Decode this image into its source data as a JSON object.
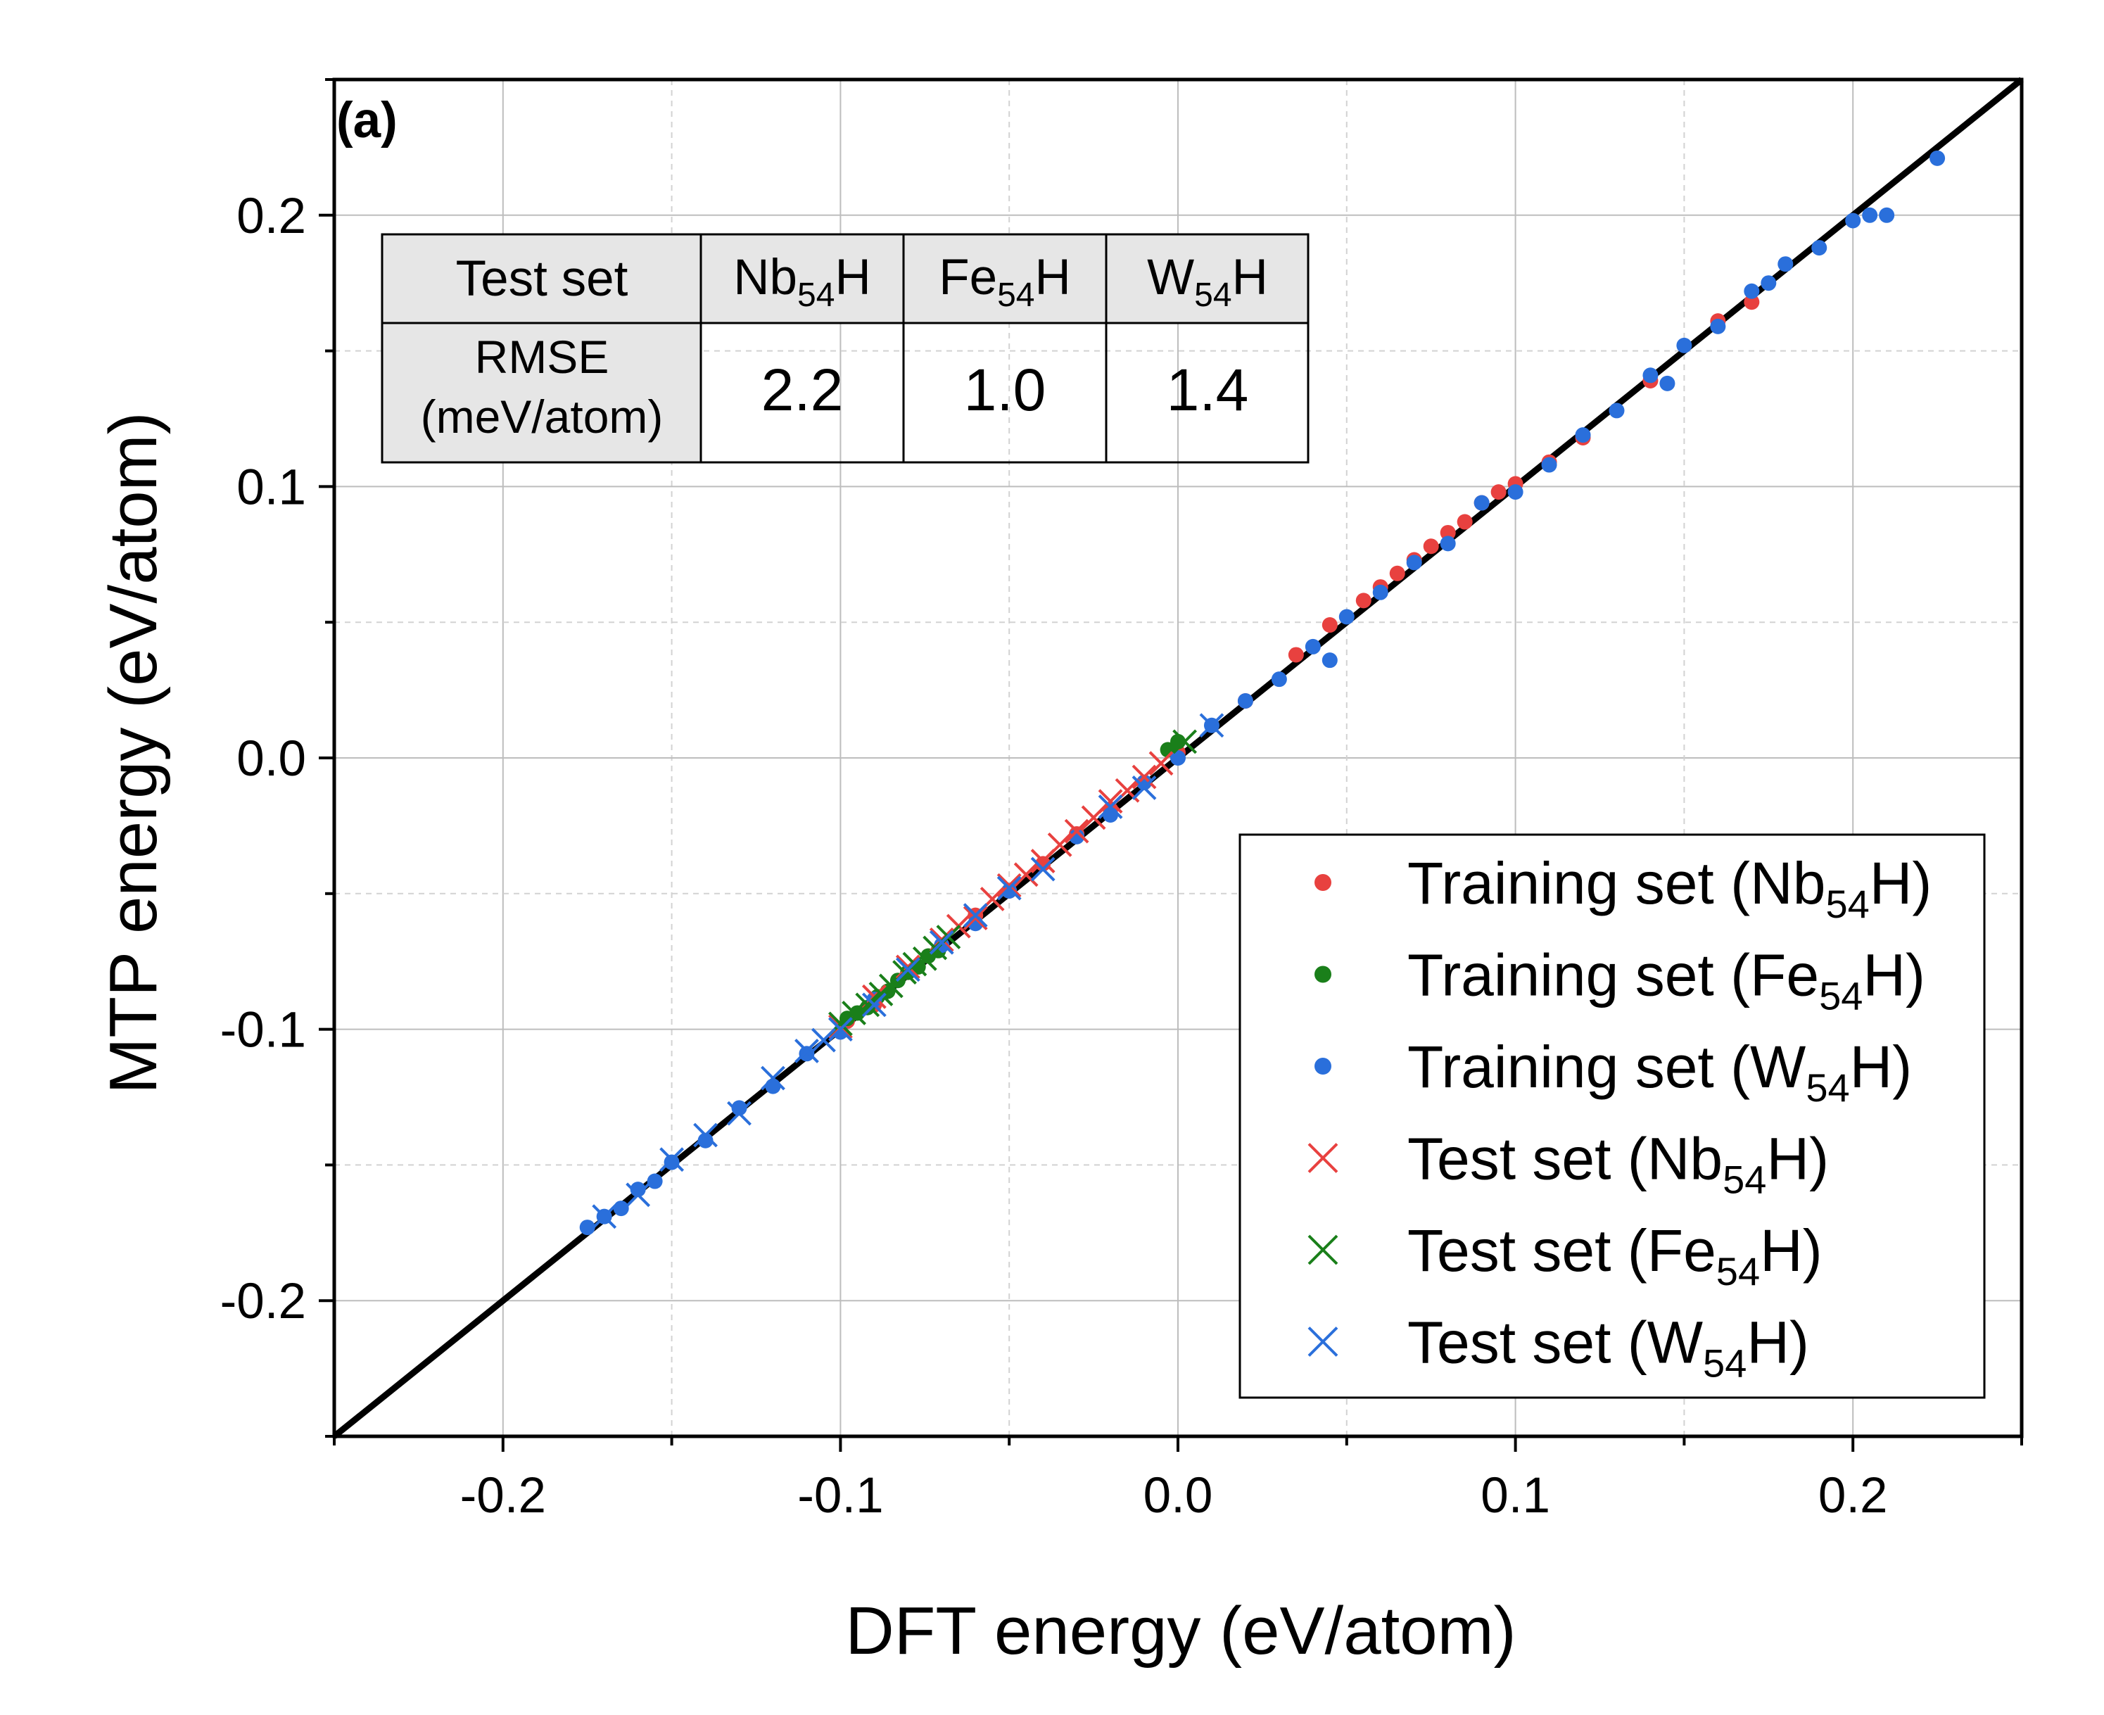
{
  "panel_label": "(a)",
  "chart_data": {
    "type": "scatter",
    "xlabel": "DFT energy (eV/atom)",
    "ylabel": "MTP energy (eV/atom)",
    "xlim": [
      -0.25,
      0.25
    ],
    "ylim": [
      -0.25,
      0.25
    ],
    "x_ticks": [
      -0.2,
      -0.1,
      0.0,
      0.1,
      0.2
    ],
    "y_ticks": [
      -0.2,
      -0.1,
      0.0,
      0.1,
      0.2
    ],
    "x_tick_labels": [
      "-0.2",
      "-0.1",
      "0.0",
      "0.1",
      "0.2"
    ],
    "y_tick_labels": [
      "-0.2",
      "-0.1",
      "0.0",
      "0.1",
      "0.2"
    ],
    "grid": true,
    "reference_line": {
      "x": [
        -0.25,
        0.25
      ],
      "y": [
        -0.25,
        0.25
      ],
      "color": "#000000"
    },
    "legend_position": "bottom-right",
    "series": [
      {
        "name": "Training set (Nb54H)",
        "name_main": "Training set (Nb",
        "name_sub": "54",
        "name_end": "H)",
        "marker": "dot",
        "color": "#e8413f",
        "points": [
          [
            -0.098,
            -0.097
          ],
          [
            -0.09,
            -0.091
          ],
          [
            -0.08,
            -0.079
          ],
          [
            -0.07,
            -0.069
          ],
          [
            -0.06,
            -0.058
          ],
          [
            -0.05,
            -0.049
          ],
          [
            -0.04,
            -0.039
          ],
          [
            -0.03,
            -0.028
          ],
          [
            -0.02,
            -0.019
          ],
          [
            -0.01,
            -0.009
          ],
          [
            0.0,
            0.002
          ],
          [
            0.02,
            0.021
          ],
          [
            0.035,
            0.038
          ],
          [
            0.045,
            0.049
          ],
          [
            0.055,
            0.058
          ],
          [
            0.06,
            0.063
          ],
          [
            0.065,
            0.068
          ],
          [
            0.07,
            0.073
          ],
          [
            0.075,
            0.078
          ],
          [
            0.08,
            0.083
          ],
          [
            0.085,
            0.087
          ],
          [
            0.09,
            0.094
          ],
          [
            0.095,
            0.098
          ],
          [
            0.1,
            0.101
          ],
          [
            0.11,
            0.109
          ],
          [
            0.12,
            0.118
          ],
          [
            0.14,
            0.139
          ],
          [
            0.16,
            0.161
          ],
          [
            0.17,
            0.168
          ]
        ]
      },
      {
        "name": "Training set (Fe54H)",
        "name_main": "Training set (Fe",
        "name_sub": "54",
        "name_end": "H)",
        "marker": "dot",
        "color": "#1a7f1a",
        "points": [
          [
            -0.098,
            -0.096
          ],
          [
            -0.095,
            -0.094
          ],
          [
            -0.092,
            -0.092
          ],
          [
            -0.089,
            -0.088
          ],
          [
            -0.086,
            -0.086
          ],
          [
            -0.083,
            -0.082
          ],
          [
            -0.08,
            -0.079
          ],
          [
            -0.077,
            -0.077
          ],
          [
            -0.074,
            -0.073
          ],
          [
            -0.071,
            -0.071
          ],
          [
            -0.003,
            0.003
          ],
          [
            0.0,
            0.006
          ]
        ]
      },
      {
        "name": "Training set (W54H)",
        "name_main": "Training set (W",
        "name_sub": "54",
        "name_end": "H)",
        "marker": "dot",
        "color": "#2a6fdb",
        "points": [
          [
            -0.175,
            -0.173
          ],
          [
            -0.17,
            -0.169
          ],
          [
            -0.165,
            -0.166
          ],
          [
            -0.16,
            -0.159
          ],
          [
            -0.155,
            -0.156
          ],
          [
            -0.15,
            -0.149
          ],
          [
            -0.14,
            -0.141
          ],
          [
            -0.13,
            -0.129
          ],
          [
            -0.12,
            -0.121
          ],
          [
            -0.11,
            -0.109
          ],
          [
            -0.1,
            -0.101
          ],
          [
            -0.09,
            -0.089
          ],
          [
            -0.07,
            -0.069
          ],
          [
            -0.06,
            -0.061
          ],
          [
            -0.05,
            -0.049
          ],
          [
            -0.03,
            -0.029
          ],
          [
            -0.02,
            -0.021
          ],
          [
            -0.01,
            -0.009
          ],
          [
            0.0,
            0.0
          ],
          [
            0.01,
            0.012
          ],
          [
            0.02,
            0.021
          ],
          [
            0.03,
            0.029
          ],
          [
            0.04,
            0.041
          ],
          [
            0.045,
            0.036
          ],
          [
            0.05,
            0.052
          ],
          [
            0.06,
            0.061
          ],
          [
            0.07,
            0.072
          ],
          [
            0.08,
            0.079
          ],
          [
            0.09,
            0.094
          ],
          [
            0.1,
            0.098
          ],
          [
            0.11,
            0.108
          ],
          [
            0.12,
            0.119
          ],
          [
            0.13,
            0.128
          ],
          [
            0.14,
            0.141
          ],
          [
            0.145,
            0.138
          ],
          [
            0.15,
            0.152
          ],
          [
            0.16,
            0.159
          ],
          [
            0.17,
            0.172
          ],
          [
            0.175,
            0.175
          ],
          [
            0.18,
            0.182
          ],
          [
            0.19,
            0.188
          ],
          [
            0.2,
            0.198
          ],
          [
            0.205,
            0.2
          ],
          [
            0.21,
            0.2
          ],
          [
            0.225,
            0.221
          ]
        ]
      },
      {
        "name": "Test set (Nb54H)",
        "name_main": "Test set (Nb",
        "name_sub": "54",
        "name_end": "H)",
        "marker": "x",
        "color": "#e8413f",
        "points": [
          [
            -0.1,
            -0.099
          ],
          [
            -0.09,
            -0.088
          ],
          [
            -0.08,
            -0.077
          ],
          [
            -0.07,
            -0.067
          ],
          [
            -0.065,
            -0.062
          ],
          [
            -0.06,
            -0.059
          ],
          [
            -0.055,
            -0.052
          ],
          [
            -0.05,
            -0.047
          ],
          [
            -0.045,
            -0.043
          ],
          [
            -0.04,
            -0.038
          ],
          [
            -0.035,
            -0.032
          ],
          [
            -0.03,
            -0.027
          ],
          [
            -0.025,
            -0.022
          ],
          [
            -0.02,
            -0.016
          ],
          [
            -0.015,
            -0.012
          ],
          [
            -0.01,
            -0.007
          ],
          [
            -0.005,
            -0.002
          ]
        ]
      },
      {
        "name": "Test set (Fe54H)",
        "name_main": "Test set (Fe",
        "name_sub": "54",
        "name_end": "H)",
        "marker": "x",
        "color": "#1a7f1a",
        "points": [
          [
            -0.1,
            -0.098
          ],
          [
            -0.096,
            -0.094
          ],
          [
            -0.092,
            -0.091
          ],
          [
            -0.088,
            -0.087
          ],
          [
            -0.085,
            -0.084
          ],
          [
            -0.081,
            -0.079
          ],
          [
            -0.078,
            -0.076
          ],
          [
            -0.075,
            -0.074
          ],
          [
            -0.072,
            -0.07
          ],
          [
            -0.068,
            -0.066
          ],
          [
            0.002,
            0.006
          ]
        ]
      },
      {
        "name": "Test set (W54H)",
        "name_main": "Test set (W",
        "name_sub": "54",
        "name_end": "H)",
        "marker": "x",
        "color": "#2a6fdb",
        "points": [
          [
            -0.17,
            -0.169
          ],
          [
            -0.16,
            -0.161
          ],
          [
            -0.15,
            -0.148
          ],
          [
            -0.14,
            -0.139
          ],
          [
            -0.13,
            -0.131
          ],
          [
            -0.12,
            -0.118
          ],
          [
            -0.11,
            -0.108
          ],
          [
            -0.105,
            -0.104
          ],
          [
            -0.1,
            -0.1
          ],
          [
            -0.09,
            -0.091
          ],
          [
            -0.08,
            -0.078
          ],
          [
            -0.07,
            -0.068
          ],
          [
            -0.06,
            -0.058
          ],
          [
            -0.05,
            -0.048
          ],
          [
            -0.04,
            -0.041
          ],
          [
            -0.02,
            -0.018
          ],
          [
            -0.01,
            -0.011
          ],
          [
            0.01,
            0.012
          ]
        ]
      }
    ]
  },
  "rmse_table": {
    "header_label": "Test set",
    "row_label_line1": "RMSE",
    "row_label_line2": "(meV/atom)",
    "columns": [
      {
        "main": "Nb",
        "sub": "54",
        "end": "H",
        "value": "2.2"
      },
      {
        "main": "Fe",
        "sub": "54",
        "end": "H",
        "value": "1.0"
      },
      {
        "main": "W",
        "sub": "54",
        "end": "H",
        "value": "1.4"
      }
    ]
  }
}
